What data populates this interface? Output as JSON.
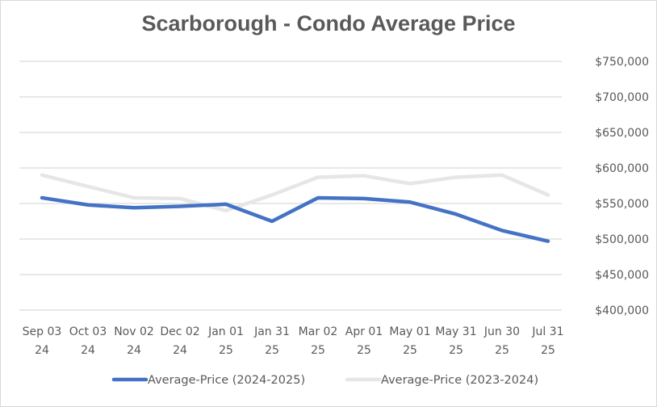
{
  "chart_data": {
    "type": "line",
    "title": "Scarborough - Condo Average Price",
    "xlabel": "",
    "ylabel": "",
    "categories": [
      [
        "Sep 03",
        "24"
      ],
      [
        "Oct 03",
        "24"
      ],
      [
        "Nov 02",
        "24"
      ],
      [
        "Dec 02",
        "24"
      ],
      [
        "Jan 01",
        "25"
      ],
      [
        "Jan 31",
        "25"
      ],
      [
        "Mar 02",
        "25"
      ],
      [
        "Apr 01",
        "25"
      ],
      [
        "May 01",
        "25"
      ],
      [
        "May 31",
        "25"
      ],
      [
        "Jun 30",
        "25"
      ],
      [
        "Jul 31",
        "25"
      ]
    ],
    "ylim": [
      400000,
      750000
    ],
    "yticks": [
      400000,
      450000,
      500000,
      550000,
      600000,
      650000,
      700000,
      750000
    ],
    "ytick_labels": [
      "$400,000",
      "$450,000",
      "$500,000",
      "$550,000",
      "$600,000",
      "$650,000",
      "$700,000",
      "$750,000"
    ],
    "grid": true,
    "yaxis_side": "right",
    "legend_position": "bottom",
    "series": [
      {
        "name": "Average-Price (2023-2024)",
        "color": "#e6e6e6",
        "values": [
          590000,
          574000,
          558000,
          557000,
          540000,
          562000,
          587000,
          589000,
          578000,
          587000,
          590000,
          562000
        ]
      },
      {
        "name": "Average-Price (2024-2025)",
        "color": "#4472c4",
        "values": [
          558000,
          548000,
          544000,
          546000,
          549000,
          525000,
          558000,
          557000,
          552000,
          535000,
          512000,
          497000
        ]
      }
    ]
  }
}
